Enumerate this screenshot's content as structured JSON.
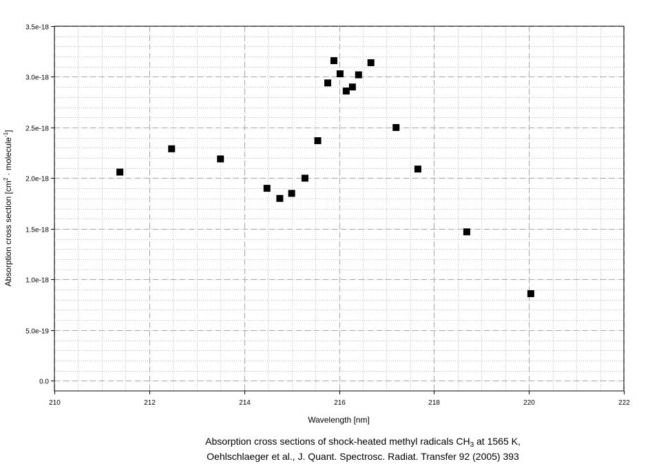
{
  "chart_data": {
    "type": "scatter",
    "title": "",
    "xlabel": "Wavelength [nm]",
    "ylabel_parts": [
      "Absorption cross section [cm",
      "2",
      " · molecule",
      "-1",
      "]"
    ],
    "xlim": [
      210,
      222
    ],
    "ylim": [
      -1e-19,
      3.5e-18
    ],
    "grid": true,
    "x_ticks": [
      210,
      212,
      214,
      216,
      218,
      220,
      222
    ],
    "x_tick_labels": [
      "210",
      "212",
      "214",
      "216",
      "218",
      "220",
      "222"
    ],
    "y_ticks": [
      0,
      5e-19,
      1e-18,
      1.5e-18,
      2e-18,
      2.5e-18,
      3e-18,
      3.5e-18
    ],
    "y_tick_labels": [
      "0.0",
      "5.0e-19",
      "1.0e-18",
      "1.5e-18",
      "2.0e-18",
      "2.5e-18",
      "3.0e-18",
      "3.5e-18"
    ],
    "series": [
      {
        "marker": "square",
        "color": "#000000",
        "points": [
          {
            "x": 211.38,
            "y": 2.06e-18
          },
          {
            "x": 212.47,
            "y": 2.29e-18
          },
          {
            "x": 213.5,
            "y": 2.19e-18
          },
          {
            "x": 214.48,
            "y": 1.9e-18
          },
          {
            "x": 214.75,
            "y": 1.8e-18
          },
          {
            "x": 215.0,
            "y": 1.85e-18
          },
          {
            "x": 215.28,
            "y": 2e-18
          },
          {
            "x": 215.55,
            "y": 2.37e-18
          },
          {
            "x": 215.76,
            "y": 2.94e-18
          },
          {
            "x": 215.89,
            "y": 3.16e-18
          },
          {
            "x": 216.02,
            "y": 3.03e-18
          },
          {
            "x": 216.15,
            "y": 2.86e-18
          },
          {
            "x": 216.28,
            "y": 2.9e-18
          },
          {
            "x": 216.41,
            "y": 3.02e-18
          },
          {
            "x": 216.67,
            "y": 3.14e-18
          },
          {
            "x": 217.2,
            "y": 2.5e-18
          },
          {
            "x": 217.66,
            "y": 2.09e-18
          },
          {
            "x": 218.69,
            "y": 1.47e-18
          },
          {
            "x": 220.04,
            "y": 8.6e-19
          }
        ]
      }
    ]
  },
  "caption": {
    "line1_before": "Absorption cross sections of shock-heated methyl radicals CH",
    "line1_sub": "3",
    "line1_after": " at 1565 K,",
    "line2": "Oehlschlaeger et al., J. Quant. Spectrosc. Radiat. Transfer 92 (2005) 393"
  }
}
